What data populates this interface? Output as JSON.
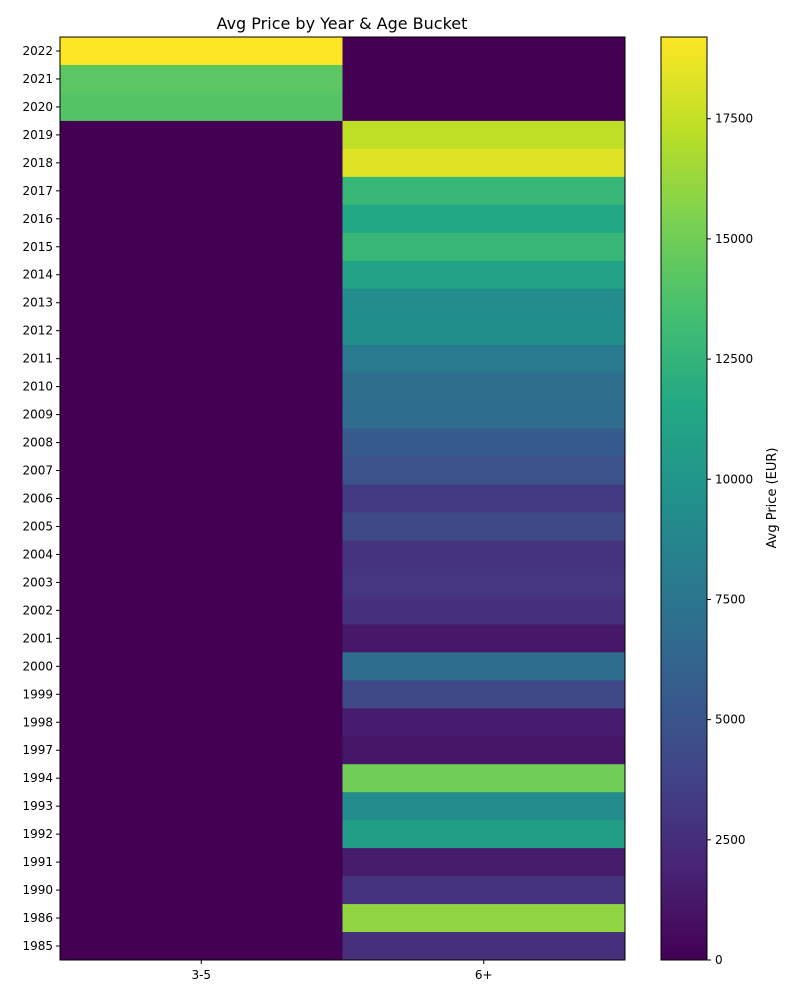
{
  "chart_data": {
    "type": "heatmap",
    "title": "Avg Price by Year & Age Bucket",
    "xlabel": "",
    "ylabel": "",
    "columns": [
      "3-5",
      "6+"
    ],
    "rows": [
      "2022",
      "2021",
      "2020",
      "2019",
      "2018",
      "2017",
      "2016",
      "2015",
      "2014",
      "2013",
      "2012",
      "2011",
      "2010",
      "2009",
      "2008",
      "2007",
      "2006",
      "2005",
      "2004",
      "2003",
      "2002",
      "2001",
      "2000",
      "1999",
      "1998",
      "1997",
      "1994",
      "1993",
      "1992",
      "1991",
      "1990",
      "1986",
      "1985"
    ],
    "values": [
      [
        19200,
        0
      ],
      [
        14300,
        0
      ],
      [
        14000,
        0
      ],
      [
        0,
        17300
      ],
      [
        0,
        18300
      ],
      [
        0,
        12800
      ],
      [
        0,
        11500
      ],
      [
        0,
        12800
      ],
      [
        0,
        11000
      ],
      [
        0,
        9300
      ],
      [
        0,
        9400
      ],
      [
        0,
        7800
      ],
      [
        0,
        7000
      ],
      [
        0,
        6800
      ],
      [
        0,
        5500
      ],
      [
        0,
        4800
      ],
      [
        0,
        3300
      ],
      [
        0,
        4300
      ],
      [
        0,
        2800
      ],
      [
        0,
        3000
      ],
      [
        0,
        2700
      ],
      [
        0,
        1200
      ],
      [
        0,
        6800
      ],
      [
        0,
        4200
      ],
      [
        0,
        1500
      ],
      [
        0,
        1100
      ],
      [
        0,
        15000
      ],
      [
        0,
        9200
      ],
      [
        0,
        10700
      ],
      [
        0,
        1400
      ],
      [
        0,
        2800
      ],
      [
        0,
        16000
      ],
      [
        0,
        2600
      ]
    ],
    "colorbar": {
      "label": "Avg Price (EUR)",
      "min": 0,
      "max": 19200,
      "ticks": [
        0,
        2500,
        5000,
        7500,
        10000,
        12500,
        15000,
        17500
      ],
      "colormap": "viridis"
    }
  }
}
